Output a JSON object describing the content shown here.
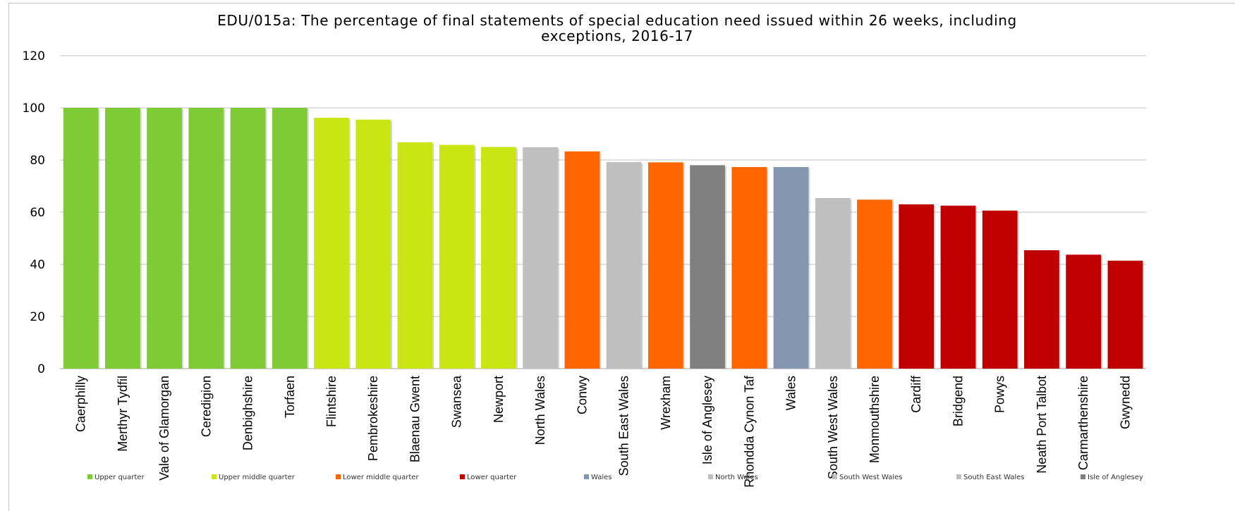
{
  "chart_data": {
    "type": "bar",
    "title_lines": [
      "EDU/015a: The percentage of final statements of special education need issued within 26 weeks, including",
      "exceptions, 2016-17"
    ],
    "xlabel": "",
    "ylabel": "",
    "ylim": [
      0,
      120
    ],
    "yticks": [
      "0",
      "20",
      "40",
      "60",
      "80",
      "100",
      "120"
    ],
    "grid": true,
    "legend_position": "bottom",
    "categories": [
      "Caerphilly",
      "Merthyr Tydfil",
      "Vale of Glamorgan",
      "Ceredigion",
      "Denbighshire",
      "Torfaen",
      "Flintshire",
      "Pembrokeshire",
      "Blaenau Gwent",
      "Swansea",
      "Newport",
      "North Wales",
      "Conwy",
      "South East Wales",
      "Wrexham",
      "Isle of Anglesey",
      "Rhondda Cynon Taf",
      "Wales",
      "South West Wales",
      "Monmouthshire",
      "Cardiff",
      "Bridgend",
      "Powys",
      "Neath Port Talbot",
      "Carmarthenshire",
      "Gwynedd"
    ],
    "values": [
      100,
      100,
      100,
      100,
      100,
      100,
      96.2,
      95.5,
      86.8,
      85.8,
      85.0,
      84.9,
      83.3,
      79.2,
      79.1,
      78.0,
      77.3,
      77.3,
      65.4,
      64.8,
      63.0,
      62.5,
      60.6,
      45.4,
      43.7,
      41.4
    ],
    "groups": [
      "Upper quarter",
      "Upper quarter",
      "Upper quarter",
      "Upper quarter",
      "Upper quarter",
      "Upper quarter",
      "Upper middle quarter",
      "Upper middle quarter",
      "Upper middle quarter",
      "Upper middle quarter",
      "Upper middle quarter",
      "North Wales",
      "Lower middle quarter",
      "South East Wales",
      "Lower middle quarter",
      "Isle of Anglesey",
      "Lower middle quarter",
      "Wales",
      "South West Wales",
      "Lower middle quarter",
      "Lower quarter",
      "Lower quarter",
      "Lower quarter",
      "Lower quarter",
      "Lower quarter",
      "Lower quarter"
    ],
    "legend": [
      {
        "name": "Upper quarter",
        "color": "#7ECB35"
      },
      {
        "name": "Upper middle quarter",
        "color": "#C9E614"
      },
      {
        "name": "Lower middle quarter",
        "color": "#FF6600"
      },
      {
        "name": "Lower quarter",
        "color": "#C00000"
      },
      {
        "name": "Wales",
        "color": "#8496B0"
      },
      {
        "name": "North Wales",
        "color": "#BFBFBF"
      },
      {
        "name": "South West Wales",
        "color": "#BFBFBF"
      },
      {
        "name": "South East Wales",
        "color": "#BFBFBF"
      },
      {
        "name": "Isle of Anglesey",
        "color": "#808080"
      }
    ]
  }
}
